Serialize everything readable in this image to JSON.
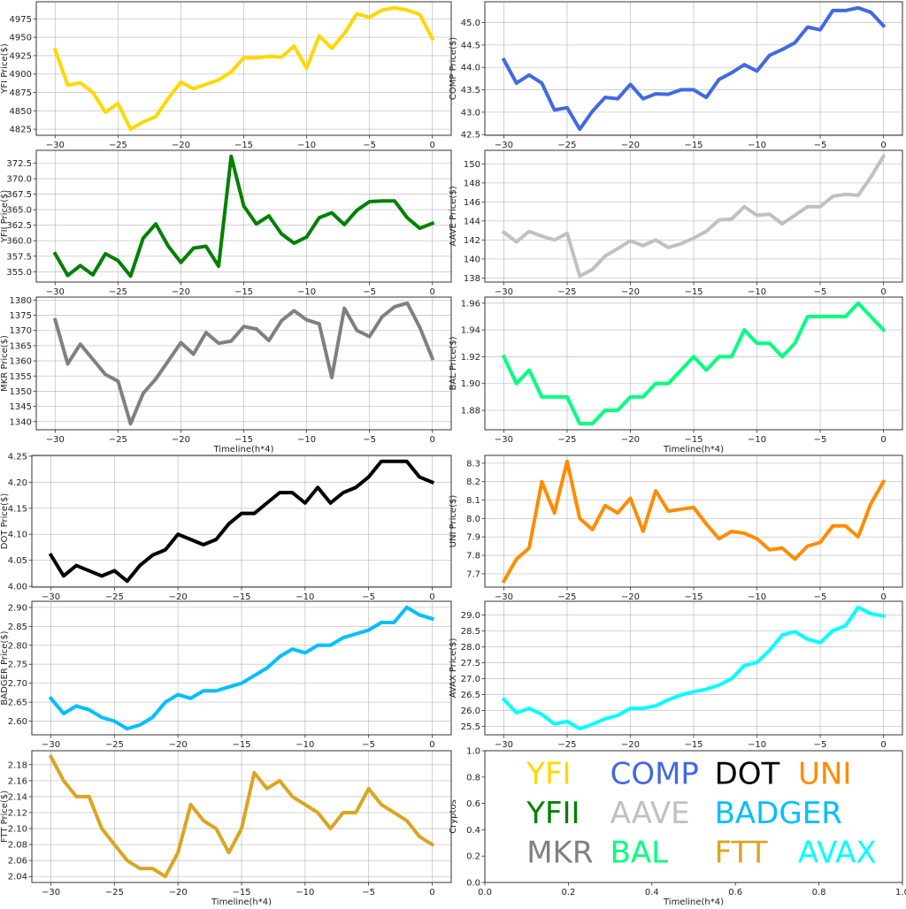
{
  "chart_data": [
    {
      "type": "line",
      "name": "YFI",
      "ylabel": "YFI Price($)",
      "xlabel": "",
      "color": "#FFD700",
      "x_start": -30,
      "x_end": 0,
      "xlim": [
        -31.5,
        1.5
      ],
      "xticks": [
        -30,
        -25,
        -20,
        -15,
        -10,
        -5,
        0
      ],
      "yticks": [
        4825,
        4850,
        4875,
        4900,
        4925,
        4950,
        4975
      ],
      "ytick_decimals": 0,
      "grid": true,
      "values": [
        4933,
        4885,
        4888,
        4875,
        4848,
        4860,
        4825,
        4835,
        4842,
        4867,
        4889,
        4880,
        4886,
        4892,
        4903,
        4922,
        4922,
        4924,
        4923,
        4938,
        4908,
        4952,
        4935,
        4955,
        4982,
        4977,
        4987,
        4990,
        4987,
        4981,
        4948
      ]
    },
    {
      "type": "line",
      "name": "COMP",
      "ylabel": "COMP Price($)",
      "xlabel": "",
      "color": "#4169E1",
      "x_start": -30,
      "x_end": 0,
      "xlim": [
        -31.5,
        1.5
      ],
      "xticks": [
        -30,
        -25,
        -20,
        -15,
        -10,
        -5,
        0
      ],
      "yticks": [
        42.5,
        43.0,
        43.5,
        44.0,
        44.5,
        45.0
      ],
      "ytick_decimals": 1,
      "grid": true,
      "values": [
        44.17,
        43.65,
        43.83,
        43.65,
        43.05,
        43.1,
        42.62,
        43.02,
        43.33,
        43.3,
        43.62,
        43.3,
        43.41,
        43.4,
        43.5,
        43.5,
        43.33,
        43.73,
        43.88,
        44.06,
        43.92,
        44.27,
        44.4,
        44.55,
        44.9,
        44.84,
        45.27,
        45.27,
        45.33,
        45.23,
        44.93
      ]
    },
    {
      "type": "line",
      "name": "YFII",
      "ylabel": "YFII Price($)",
      "xlabel": "",
      "color": "#008000",
      "x_start": -30,
      "x_end": 0,
      "xlim": [
        -31.5,
        1.5
      ],
      "xticks": [
        -30,
        -25,
        -20,
        -15,
        -10,
        -5,
        0
      ],
      "yticks": [
        355.0,
        357.5,
        360.0,
        362.5,
        365.0,
        367.5,
        370.0,
        372.5
      ],
      "ytick_decimals": 1,
      "grid": true,
      "values": [
        357.9,
        354.4,
        356.0,
        354.5,
        357.9,
        356.8,
        354.3,
        360.4,
        362.7,
        359.1,
        356.5,
        358.8,
        359.1,
        355.9,
        373.6,
        365.6,
        362.7,
        364.0,
        361.1,
        359.6,
        360.6,
        363.7,
        364.5,
        362.6,
        364.9,
        366.3,
        366.4,
        366.4,
        363.7,
        362.0,
        362.8
      ]
    },
    {
      "type": "line",
      "name": "AAVE",
      "ylabel": "AAVE Price($)",
      "xlabel": "",
      "color": "#C0C0C0",
      "x_start": -30,
      "x_end": 0,
      "xlim": [
        -31.5,
        1.5
      ],
      "xticks": [
        -30,
        -25,
        -20,
        -15,
        -10,
        -5,
        0
      ],
      "yticks": [
        138,
        140,
        142,
        144,
        146,
        148,
        150
      ],
      "ytick_decimals": 0,
      "grid": true,
      "values": [
        142.8,
        141.8,
        142.9,
        142.4,
        142.0,
        142.7,
        138.2,
        138.9,
        140.3,
        141.1,
        141.9,
        141.4,
        142.0,
        141.2,
        141.6,
        142.2,
        142.9,
        144.1,
        144.2,
        145.5,
        144.6,
        144.7,
        143.7,
        144.6,
        145.5,
        145.5,
        146.6,
        146.8,
        146.7,
        148.6,
        150.8
      ]
    },
    {
      "type": "line",
      "name": "MKR",
      "ylabel": "MKR Price($)",
      "xlabel": "Timeline(h*4)",
      "color": "#808080",
      "x_start": -30,
      "x_end": 0,
      "xlim": [
        -31.5,
        1.5
      ],
      "xticks": [
        -30,
        -25,
        -20,
        -15,
        -10,
        -5,
        0
      ],
      "yticks": [
        1340,
        1345,
        1350,
        1355,
        1360,
        1365,
        1370,
        1375,
        1380
      ],
      "ytick_decimals": 0,
      "grid": true,
      "values": [
        1373.5,
        1359,
        1365.5,
        1360.5,
        1355.5,
        1353.3,
        1339.3,
        1349.3,
        1354,
        1360,
        1366,
        1362.2,
        1369.3,
        1365.8,
        1366.5,
        1371.3,
        1370.5,
        1366.7,
        1373.2,
        1376.5,
        1373.5,
        1372.2,
        1354.5,
        1377.3,
        1370,
        1368,
        1374.5,
        1377.8,
        1379,
        1371,
        1360.8
      ]
    },
    {
      "type": "line",
      "name": "BAL",
      "ylabel": "BAL Price($)",
      "xlabel": "Timeline(h*4)",
      "color": "#00FF7F",
      "x_start": -30,
      "x_end": 0,
      "xlim": [
        -31.5,
        1.5
      ],
      "xticks": [
        -30,
        -25,
        -20,
        -15,
        -10,
        -5,
        0
      ],
      "yticks": [
        1.88,
        1.9,
        1.92,
        1.94,
        1.96
      ],
      "ytick_decimals": 2,
      "grid": true,
      "values": [
        1.92,
        1.9,
        1.91,
        1.89,
        1.89,
        1.89,
        1.87,
        1.87,
        1.88,
        1.88,
        1.89,
        1.89,
        1.9,
        1.9,
        1.91,
        1.92,
        1.91,
        1.92,
        1.92,
        1.94,
        1.93,
        1.93,
        1.92,
        1.93,
        1.95,
        1.95,
        1.95,
        1.95,
        1.96,
        1.95,
        1.94
      ]
    },
    {
      "type": "line",
      "name": "DOT",
      "ylabel": "DOT Price($)",
      "xlabel": "",
      "color": "#000000",
      "x_start": -30,
      "x_end": 0,
      "xlim": [
        -31.5,
        1.5
      ],
      "xticks": [
        -30,
        -25,
        -20,
        -15,
        -10,
        -5,
        0
      ],
      "yticks": [
        4.0,
        4.05,
        4.1,
        4.15,
        4.2,
        4.25
      ],
      "ytick_decimals": 2,
      "grid": true,
      "values": [
        4.06,
        4.02,
        4.04,
        4.03,
        4.02,
        4.03,
        4.01,
        4.04,
        4.06,
        4.07,
        4.1,
        4.09,
        4.08,
        4.09,
        4.12,
        4.14,
        4.14,
        4.16,
        4.18,
        4.18,
        4.16,
        4.19,
        4.16,
        4.18,
        4.19,
        4.21,
        4.24,
        4.24,
        4.24,
        4.21,
        4.2
      ]
    },
    {
      "type": "line",
      "name": "UNI",
      "ylabel": "UNI Price($)",
      "xlabel": "",
      "color": "#FF8C00",
      "x_start": -30,
      "x_end": 0,
      "xlim": [
        -31.5,
        1.5
      ],
      "xticks": [
        -30,
        -25,
        -20,
        -15,
        -10,
        -5,
        0
      ],
      "yticks": [
        7.7,
        7.8,
        7.9,
        8.0,
        8.1,
        8.2,
        8.3
      ],
      "ytick_decimals": 1,
      "grid": true,
      "values": [
        7.66,
        7.78,
        7.84,
        8.2,
        8.03,
        8.31,
        8.0,
        7.94,
        8.07,
        8.03,
        8.11,
        7.93,
        8.15,
        8.04,
        8.05,
        8.06,
        7.97,
        7.89,
        7.93,
        7.92,
        7.89,
        7.83,
        7.84,
        7.78,
        7.85,
        7.87,
        7.96,
        7.96,
        7.9,
        8.08,
        8.2
      ]
    },
    {
      "type": "line",
      "name": "BADGER",
      "ylabel": "BADGER Price($)",
      "xlabel": "",
      "color": "#00BFFF",
      "x_start": -30,
      "x_end": 0,
      "xlim": [
        -31.5,
        1.5
      ],
      "xticks": [
        -30,
        -25,
        -20,
        -15,
        -10,
        -5,
        0
      ],
      "yticks": [
        2.6,
        2.65,
        2.7,
        2.75,
        2.8,
        2.85,
        2.9
      ],
      "ytick_decimals": 2,
      "grid": true,
      "values": [
        2.66,
        2.62,
        2.64,
        2.63,
        2.61,
        2.6,
        2.58,
        2.59,
        2.61,
        2.65,
        2.67,
        2.66,
        2.68,
        2.68,
        2.69,
        2.7,
        2.72,
        2.74,
        2.77,
        2.79,
        2.78,
        2.8,
        2.8,
        2.82,
        2.83,
        2.84,
        2.86,
        2.86,
        2.9,
        2.88,
        2.87
      ]
    },
    {
      "type": "line",
      "name": "AVAX",
      "ylabel": "AVAX Price($)",
      "xlabel": "",
      "color": "#00FFFF",
      "x_start": -30,
      "x_end": 0,
      "xlim": [
        -31.5,
        1.5
      ],
      "xticks": [
        -30,
        -25,
        -20,
        -15,
        -10,
        -5,
        0
      ],
      "yticks": [
        25.5,
        26.0,
        26.5,
        27.0,
        27.5,
        28.0,
        28.5,
        29.0
      ],
      "ytick_decimals": 1,
      "grid": true,
      "values": [
        26.35,
        25.93,
        26.07,
        25.88,
        25.58,
        25.66,
        25.43,
        25.57,
        25.74,
        25.85,
        26.07,
        26.07,
        26.15,
        26.34,
        26.49,
        26.59,
        26.67,
        26.8,
        27.0,
        27.41,
        27.51,
        27.89,
        28.37,
        28.48,
        28.24,
        28.13,
        28.51,
        28.66,
        29.24,
        29.04,
        28.97
      ]
    },
    {
      "type": "line",
      "name": "FTT",
      "ylabel": "FTT Price($)",
      "xlabel": "Timeline(h*4)",
      "color": "#DAA520",
      "x_start": -30,
      "x_end": 0,
      "xlim": [
        -31.5,
        1.5
      ],
      "xticks": [
        -30,
        -25,
        -20,
        -15,
        -10,
        -5,
        0
      ],
      "yticks": [
        2.04,
        2.06,
        2.08,
        2.1,
        2.12,
        2.14,
        2.16,
        2.18
      ],
      "ytick_decimals": 2,
      "grid": true,
      "values": [
        2.19,
        2.16,
        2.14,
        2.14,
        2.1,
        2.08,
        2.06,
        2.05,
        2.05,
        2.04,
        2.07,
        2.13,
        2.11,
        2.1,
        2.07,
        2.1,
        2.17,
        2.15,
        2.16,
        2.14,
        2.13,
        2.12,
        2.1,
        2.12,
        2.12,
        2.15,
        2.13,
        2.12,
        2.11,
        2.09,
        2.08
      ]
    },
    {
      "type": "text-legend",
      "name": "legend",
      "ylabel": "Cryptos",
      "xlabel": "Timeline(h*4)",
      "xlim": [
        0,
        1
      ],
      "ylim": [
        0,
        1
      ],
      "xticks": [
        0.0,
        0.2,
        0.4,
        0.6,
        0.8,
        1.0
      ],
      "yticks": [
        0.0,
        0.2,
        0.4,
        0.6,
        0.8,
        1.0
      ],
      "tick_decimals": 1,
      "grid": false,
      "labels": [
        {
          "text": "YFI",
          "color": "#FFD700",
          "x": 0.1,
          "y": 0.75
        },
        {
          "text": "COMP",
          "color": "#4169E1",
          "x": 0.3,
          "y": 0.75
        },
        {
          "text": "DOT",
          "color": "#000000",
          "x": 0.55,
          "y": 0.75
        },
        {
          "text": "UNI",
          "color": "#FF8C00",
          "x": 0.75,
          "y": 0.75
        },
        {
          "text": "YFII",
          "color": "#008000",
          "x": 0.1,
          "y": 0.45
        },
        {
          "text": "AAVE",
          "color": "#C0C0C0",
          "x": 0.3,
          "y": 0.45
        },
        {
          "text": "BADGER",
          "color": "#00BFFF",
          "x": 0.55,
          "y": 0.45
        },
        {
          "text": "MKR",
          "color": "#808080",
          "x": 0.1,
          "y": 0.15
        },
        {
          "text": "BAL",
          "color": "#00FF7F",
          "x": 0.3,
          "y": 0.15
        },
        {
          "text": "FTT",
          "color": "#DAA520",
          "x": 0.55,
          "y": 0.15
        },
        {
          "text": "AVAX",
          "color": "#00FFFF",
          "x": 0.75,
          "y": 0.15
        }
      ]
    }
  ]
}
